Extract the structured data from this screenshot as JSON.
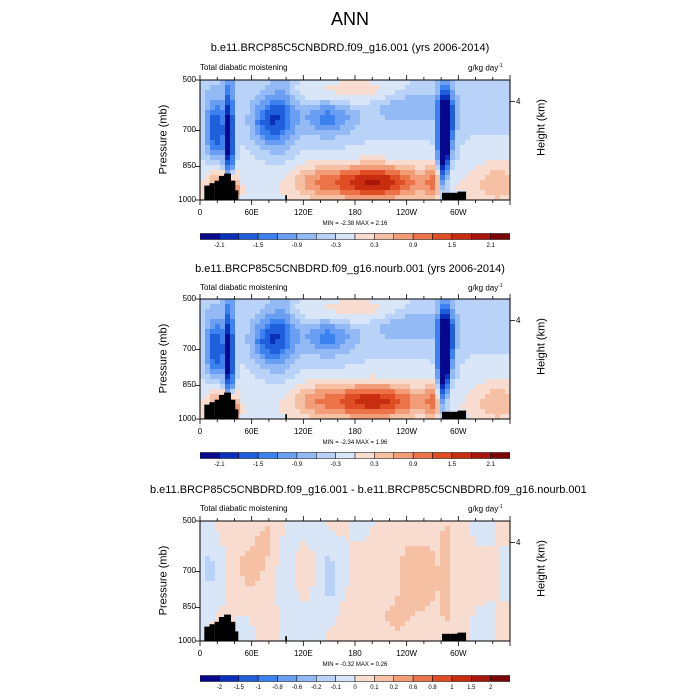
{
  "title": "ANN",
  "colors": [
    "#08088c",
    "#0a2fb8",
    "#1f5fdb",
    "#3b82f0",
    "#6a9ef2",
    "#94baf5",
    "#b9d2f7",
    "#d8e6f8",
    "#f7dccf",
    "#f5c0a4",
    "#f29c78",
    "#ec7347",
    "#df4d24",
    "#c82d10",
    "#a8150a",
    "#7a0605"
  ],
  "panels": [
    {
      "title": "b.e11.BRCP85C5CNBDRD.f09_g16.001 (yrs 2006-2014)",
      "left_label": "Total diabatic moistening",
      "right_label": "g/kg day",
      "units_exp": "-1",
      "ylabel": "Pressure (mb)",
      "ylabel_right": "Height (km)",
      "yticks": [
        "500",
        "700",
        "850",
        "1000"
      ],
      "yticks_right": [
        "4"
      ],
      "xticks": [
        "0",
        "60E",
        "120E",
        "180",
        "120W",
        "60W"
      ],
      "min_max": "MIN =  -2.38  MAX =  2.16",
      "cb_labels": [
        "-2.1",
        "-1.5",
        "-0.9",
        "-0.3",
        "0.3",
        "0.9",
        "1.5",
        "2.1"
      ]
    },
    {
      "title": "b.e11.BRCP85C5CNBDRD.f09_g16.nourb.001 (yrs 2006-2014)",
      "left_label": "Total diabatic moistening",
      "right_label": "g/kg day",
      "units_exp": "-1",
      "ylabel": "Pressure (mb)",
      "ylabel_right": "Height (km)",
      "yticks": [
        "500",
        "700",
        "850",
        "1000"
      ],
      "yticks_right": [
        "4"
      ],
      "xticks": [
        "0",
        "60E",
        "120E",
        "180",
        "120W",
        "60W"
      ],
      "min_max": "MIN =  -2.34  MAX =  1.96",
      "cb_labels": [
        "-2.1",
        "-1.5",
        "-0.9",
        "-0.3",
        "0.3",
        "0.9",
        "1.5",
        "2.1"
      ]
    },
    {
      "title": "b.e11.BRCP85C5CNBDRD.f09_g16.001 - b.e11.BRCP85C5CNBDRD.f09_g16.nourb.001",
      "left_label": "Total diabatic moistening",
      "right_label": "g/kg day",
      "units_exp": "-1",
      "ylabel": "Pressure (mb)",
      "ylabel_right": "Height (km)",
      "yticks": [
        "500",
        "700",
        "850",
        "1000"
      ],
      "yticks_right": [
        "4"
      ],
      "xticks": [
        "0",
        "60E",
        "120E",
        "180",
        "120W",
        "60W"
      ],
      "min_max": "MIN =  -0.32  MAX =  0.26",
      "cb_labels": [
        "-2",
        "-1.5",
        "-1",
        "-0.8",
        "-0.6",
        "-0.2",
        "-0.1",
        "0",
        "0.1",
        "0.2",
        "0.6",
        "0.8",
        "1",
        "1.5",
        "2"
      ]
    }
  ],
  "chart_data": [
    {
      "type": "heatmap",
      "title": "b.e11.BRCP85C5CNBDRD.f09_g16.001 (yrs 2006-2014)",
      "ylabel": "Pressure (mb)",
      "x": [
        "0",
        "60E",
        "120E",
        "180",
        "120W",
        "60W"
      ],
      "ylim": [
        1000,
        500
      ],
      "min": -2.38,
      "max": 2.16,
      "levels": [
        -2.1,
        -1.8,
        -1.5,
        -1.2,
        -0.9,
        -0.6,
        -0.3,
        0,
        0.3,
        0.6,
        0.9,
        1.2,
        1.5,
        1.8,
        2.1
      ]
    },
    {
      "type": "heatmap",
      "title": "b.e11.BRCP85C5CNBDRD.f09_g16.nourb.001 (yrs 2006-2014)",
      "ylabel": "Pressure (mb)",
      "x": [
        "0",
        "60E",
        "120E",
        "180",
        "120W",
        "60W"
      ],
      "ylim": [
        1000,
        500
      ],
      "min": -2.34,
      "max": 1.96,
      "levels": [
        -2.1,
        -1.8,
        -1.5,
        -1.2,
        -0.9,
        -0.6,
        -0.3,
        0,
        0.3,
        0.6,
        0.9,
        1.2,
        1.5,
        1.8,
        2.1
      ]
    },
    {
      "type": "heatmap",
      "title": "b.e11.BRCP85C5CNBDRD.f09_g16.001 - b.e11.BRCP85C5CNBDRD.f09_g16.nourb.001",
      "ylabel": "Pressure (mb)",
      "x": [
        "0",
        "60E",
        "120E",
        "180",
        "120W",
        "60W"
      ],
      "ylim": [
        1000,
        500
      ],
      "min": -0.32,
      "max": 0.26,
      "levels": [
        -2,
        -1.5,
        -1,
        -0.8,
        -0.6,
        -0.2,
        -0.1,
        0,
        0.1,
        0.2,
        0.6,
        0.8,
        1,
        1.5,
        2
      ]
    }
  ]
}
